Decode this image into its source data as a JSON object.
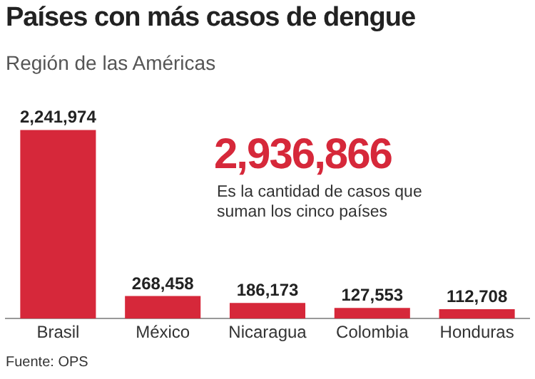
{
  "chart_data": {
    "type": "bar",
    "title": "Países con más casos de dengue",
    "subtitle": "Región de las Américas",
    "categories": [
      "Brasil",
      "México",
      "Nicaragua",
      "Colombia",
      "Honduras"
    ],
    "values": [
      2241974,
      268458,
      186173,
      127553,
      112708
    ],
    "value_labels": [
      "2,241,974",
      "268,458",
      "186,173",
      "127,553",
      "112,708"
    ],
    "color": "#d6283a",
    "legend": false,
    "grid": false,
    "annotations": [
      "2,936,866",
      "Es la cantidad de casos que suman los cinco países",
      "Fuente: OPS"
    ]
  }
}
